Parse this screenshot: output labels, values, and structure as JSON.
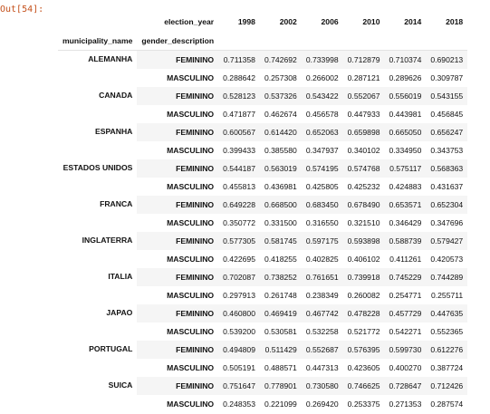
{
  "cell": {
    "prompt": "Out[54]:"
  },
  "table": {
    "columns_name": "election_year",
    "index_names": [
      "municipality_name",
      "gender_description"
    ],
    "years": [
      "1998",
      "2002",
      "2006",
      "2010",
      "2014",
      "2018"
    ],
    "groups": [
      {
        "municipality": "ALEMANHA",
        "rows": [
          {
            "gender": "FEMININO",
            "values": [
              "0.711358",
              "0.742692",
              "0.733998",
              "0.712879",
              "0.710374",
              "0.690213"
            ]
          },
          {
            "gender": "MASCULINO",
            "values": [
              "0.288642",
              "0.257308",
              "0.266002",
              "0.287121",
              "0.289626",
              "0.309787"
            ]
          }
        ]
      },
      {
        "municipality": "CANADA",
        "rows": [
          {
            "gender": "FEMININO",
            "values": [
              "0.528123",
              "0.537326",
              "0.543422",
              "0.552067",
              "0.556019",
              "0.543155"
            ]
          },
          {
            "gender": "MASCULINO",
            "values": [
              "0.471877",
              "0.462674",
              "0.456578",
              "0.447933",
              "0.443981",
              "0.456845"
            ]
          }
        ]
      },
      {
        "municipality": "ESPANHA",
        "rows": [
          {
            "gender": "FEMININO",
            "values": [
              "0.600567",
              "0.614420",
              "0.652063",
              "0.659898",
              "0.665050",
              "0.656247"
            ]
          },
          {
            "gender": "MASCULINO",
            "values": [
              "0.399433",
              "0.385580",
              "0.347937",
              "0.340102",
              "0.334950",
              "0.343753"
            ]
          }
        ]
      },
      {
        "municipality": "ESTADOS UNIDOS",
        "rows": [
          {
            "gender": "FEMININO",
            "values": [
              "0.544187",
              "0.563019",
              "0.574195",
              "0.574768",
              "0.575117",
              "0.568363"
            ]
          },
          {
            "gender": "MASCULINO",
            "values": [
              "0.455813",
              "0.436981",
              "0.425805",
              "0.425232",
              "0.424883",
              "0.431637"
            ]
          }
        ]
      },
      {
        "municipality": "FRANCA",
        "rows": [
          {
            "gender": "FEMININO",
            "values": [
              "0.649228",
              "0.668500",
              "0.683450",
              "0.678490",
              "0.653571",
              "0.652304"
            ]
          },
          {
            "gender": "MASCULINO",
            "values": [
              "0.350772",
              "0.331500",
              "0.316550",
              "0.321510",
              "0.346429",
              "0.347696"
            ]
          }
        ]
      },
      {
        "municipality": "INGLATERRA",
        "rows": [
          {
            "gender": "FEMININO",
            "values": [
              "0.577305",
              "0.581745",
              "0.597175",
              "0.593898",
              "0.588739",
              "0.579427"
            ]
          },
          {
            "gender": "MASCULINO",
            "values": [
              "0.422695",
              "0.418255",
              "0.402825",
              "0.406102",
              "0.411261",
              "0.420573"
            ]
          }
        ]
      },
      {
        "municipality": "ITALIA",
        "rows": [
          {
            "gender": "FEMININO",
            "values": [
              "0.702087",
              "0.738252",
              "0.761651",
              "0.739918",
              "0.745229",
              "0.744289"
            ]
          },
          {
            "gender": "MASCULINO",
            "values": [
              "0.297913",
              "0.261748",
              "0.238349",
              "0.260082",
              "0.254771",
              "0.255711"
            ]
          }
        ]
      },
      {
        "municipality": "JAPAO",
        "rows": [
          {
            "gender": "FEMININO",
            "values": [
              "0.460800",
              "0.469419",
              "0.467742",
              "0.478228",
              "0.457729",
              "0.447635"
            ]
          },
          {
            "gender": "MASCULINO",
            "values": [
              "0.539200",
              "0.530581",
              "0.532258",
              "0.521772",
              "0.542271",
              "0.552365"
            ]
          }
        ]
      },
      {
        "municipality": "PORTUGAL",
        "rows": [
          {
            "gender": "FEMININO",
            "values": [
              "0.494809",
              "0.511429",
              "0.552687",
              "0.576395",
              "0.599730",
              "0.612276"
            ]
          },
          {
            "gender": "MASCULINO",
            "values": [
              "0.505191",
              "0.488571",
              "0.447313",
              "0.423605",
              "0.400270",
              "0.387724"
            ]
          }
        ]
      },
      {
        "municipality": "SUICA",
        "rows": [
          {
            "gender": "FEMININO",
            "values": [
              "0.751647",
              "0.778901",
              "0.730580",
              "0.746625",
              "0.728647",
              "0.712426"
            ]
          },
          {
            "gender": "MASCULINO",
            "values": [
              "0.248353",
              "0.221099",
              "0.269420",
              "0.253375",
              "0.271353",
              "0.287574"
            ]
          }
        ]
      }
    ]
  }
}
